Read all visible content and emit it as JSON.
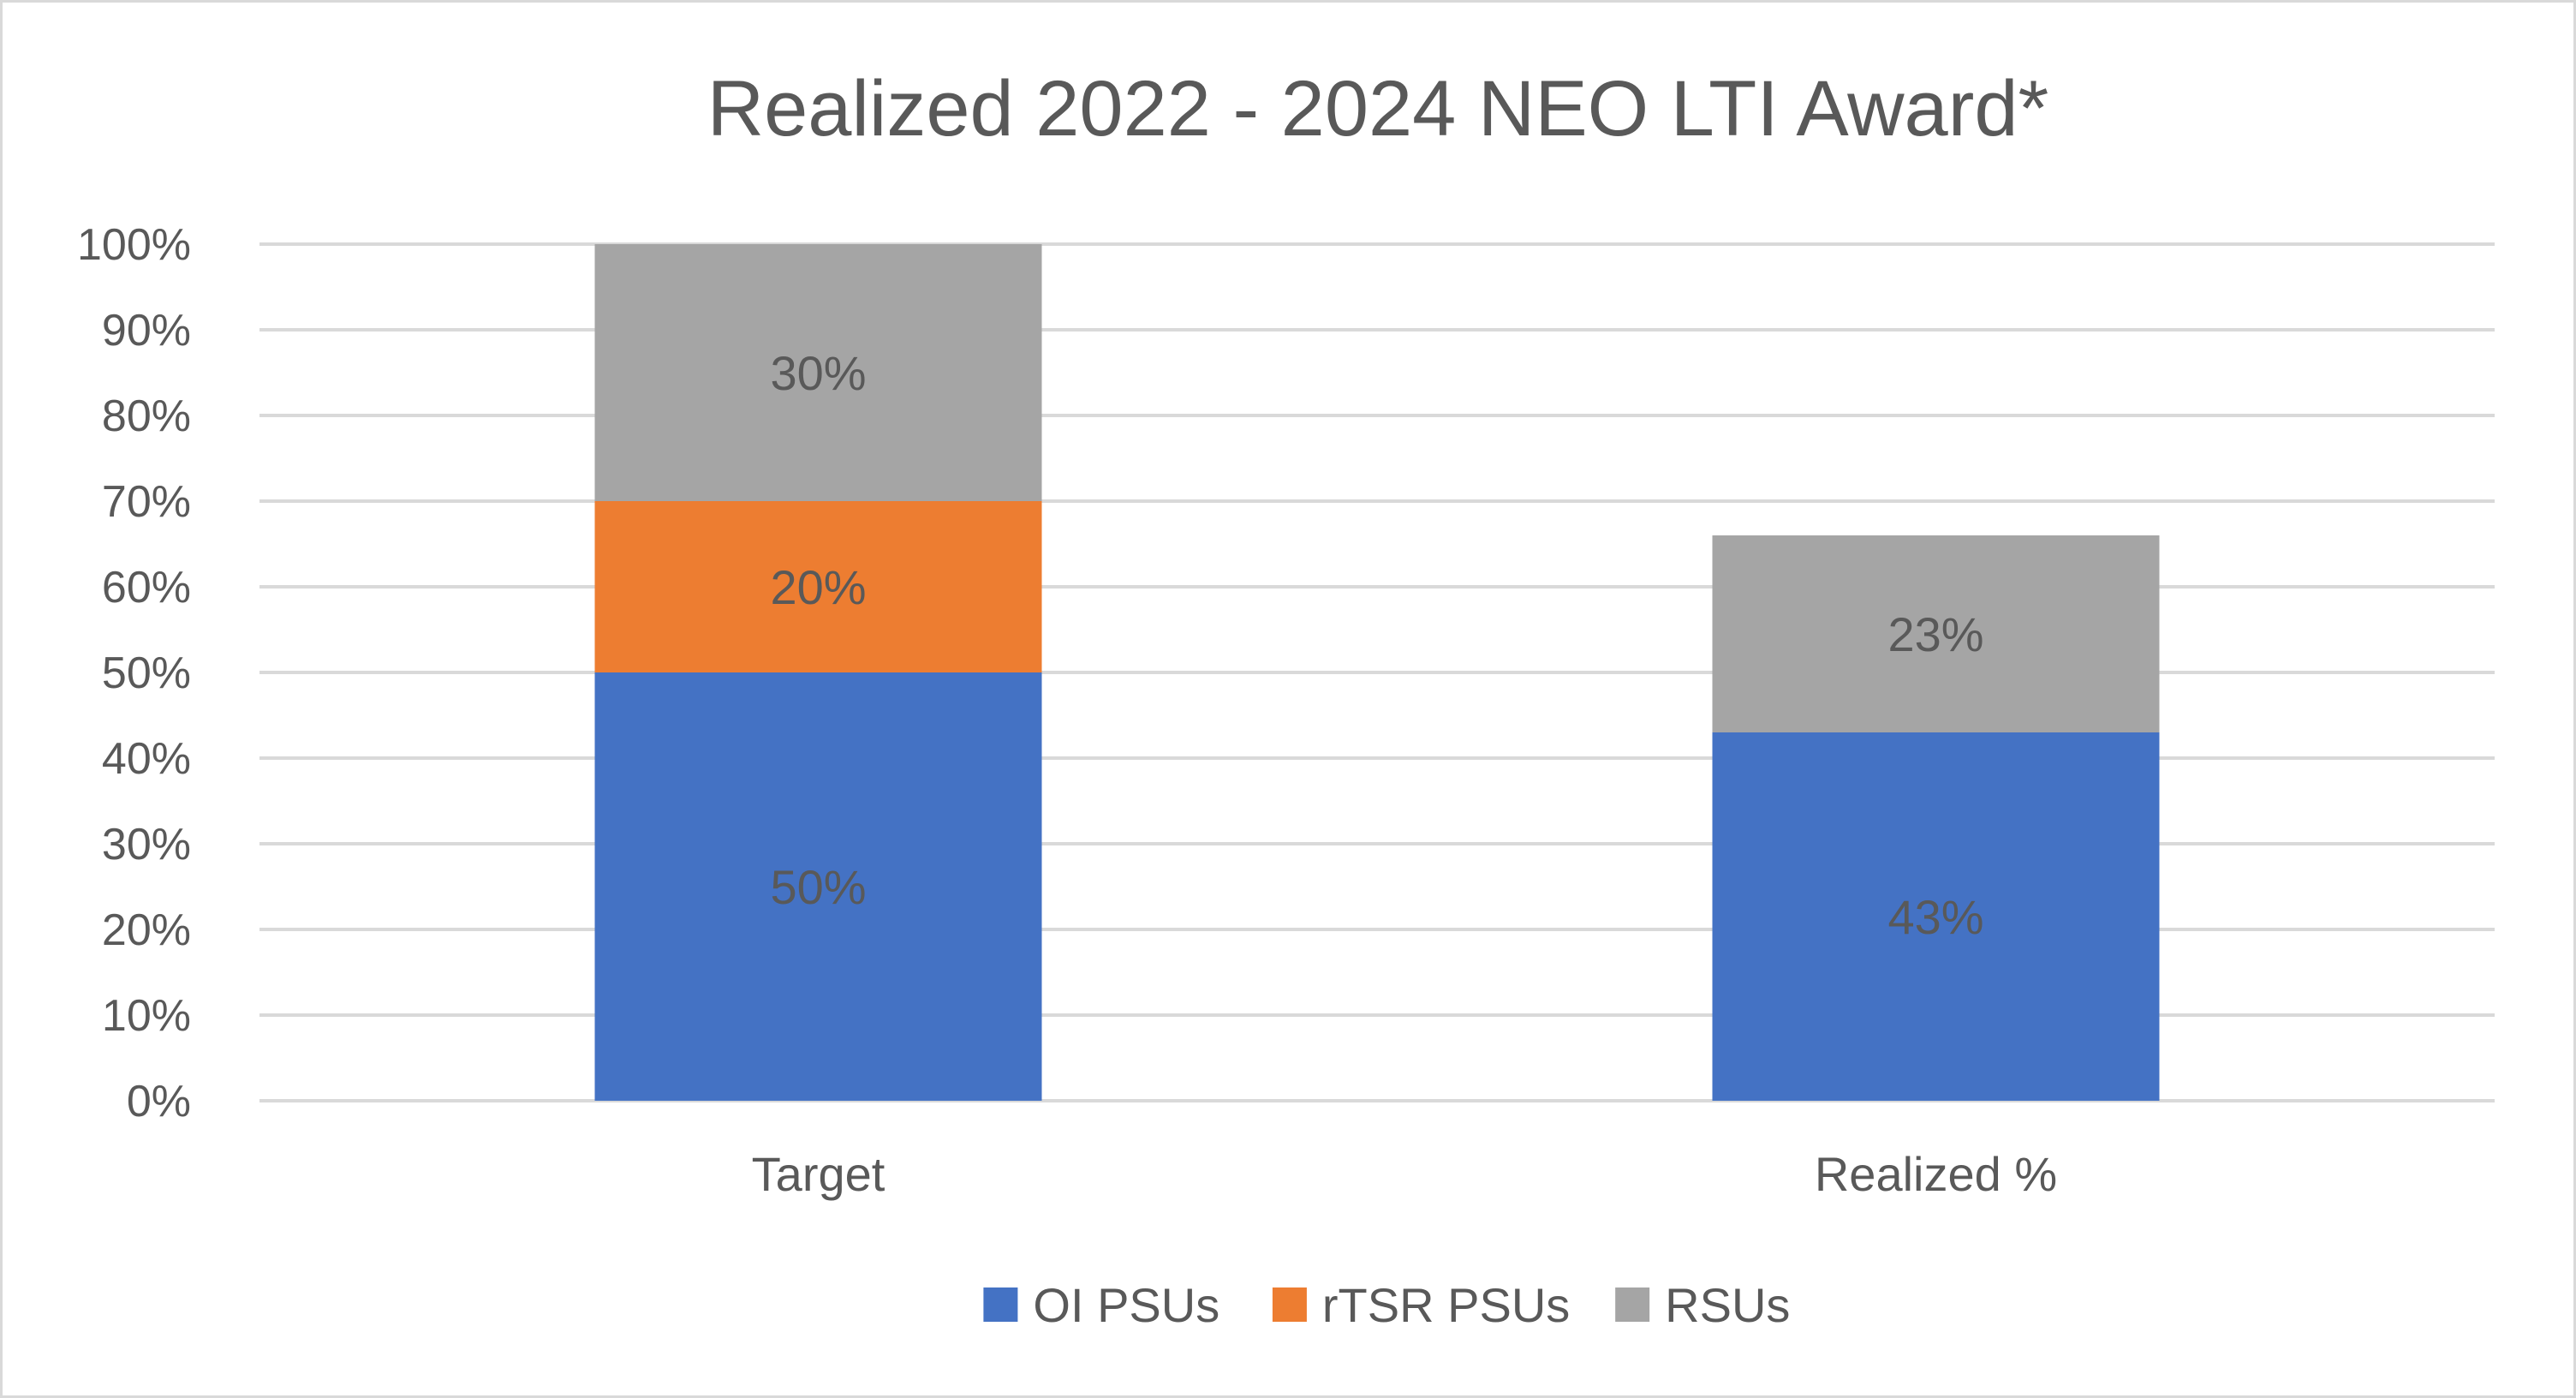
{
  "chart_data": {
    "type": "bar",
    "stacked": true,
    "title": "Realized 2022 - 2024 NEO LTI Award*",
    "xlabel": "",
    "ylabel": "",
    "categories": [
      "Target",
      "Realized %"
    ],
    "series": [
      {
        "name": "OI PSUs",
        "color": "#4472c4",
        "values": [
          50,
          43
        ],
        "labels": [
          "50%",
          "43%"
        ]
      },
      {
        "name": "rTSR PSUs",
        "color": "#ed7d31",
        "values": [
          20,
          0
        ],
        "labels": [
          "20%",
          ""
        ]
      },
      {
        "name": "RSUs",
        "color": "#a5a5a5",
        "values": [
          30,
          23
        ],
        "labels": [
          "30%",
          "23%"
        ]
      }
    ],
    "ylim": [
      0,
      100
    ],
    "yticks": [
      "0%",
      "10%",
      "20%",
      "30%",
      "40%",
      "50%",
      "60%",
      "70%",
      "80%",
      "90%",
      "100%"
    ],
    "grid": true,
    "legend_position": "bottom"
  }
}
